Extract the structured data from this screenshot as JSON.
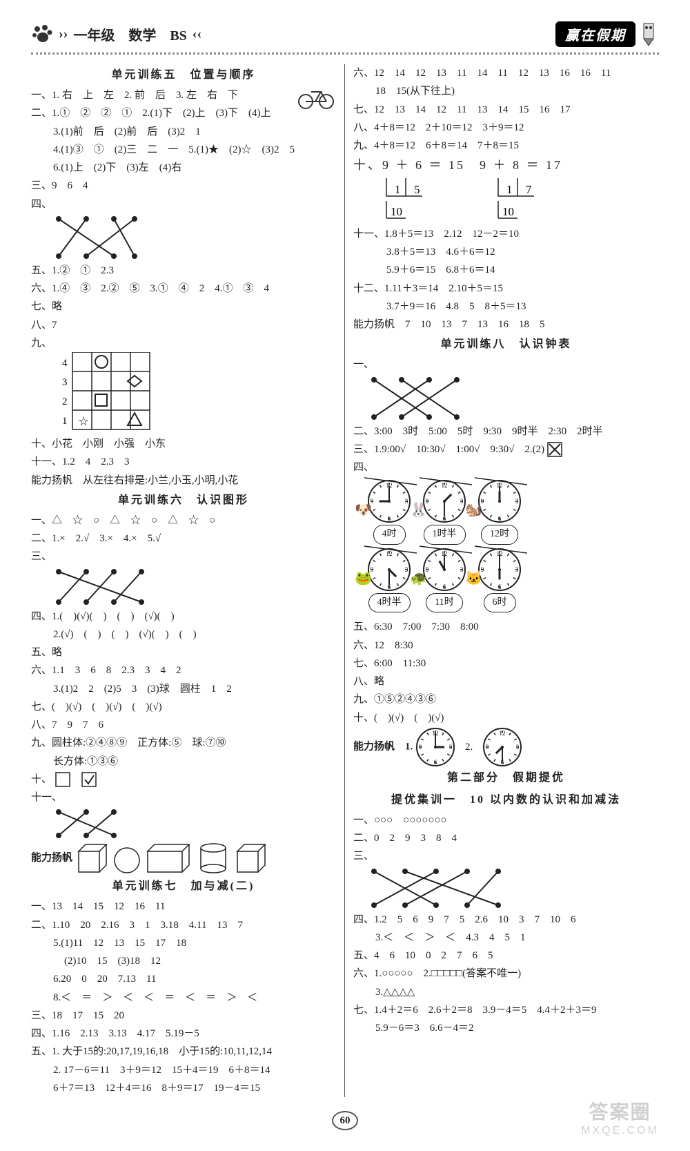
{
  "header": {
    "title_arrows_left": "›› ",
    "title": "一年级　数学　BS",
    "title_arrows_right": " ‹‹",
    "badge": "赢在假期"
  },
  "left": {
    "sec5_title": "单元训练五　位置与顺序",
    "l1": "一、1. 右　上　左　2. 前　后　3. 左　右　下",
    "l2": "二、1.①　②　②　①　2.(1)下　(2)上　(3)下　(4)上",
    "l2b": "3.(1)前　后　(2)前　后　(3)2　1",
    "l2c": "4.(1)③　①　(2)三　二　一　5.(1)★　(2)☆　(3)2　5",
    "l2d": "6.(1)上　(2)下　(3)左　(4)右",
    "l3": "三、9　6　4",
    "l4": "四、",
    "l5": "五、1.②　①　2.3",
    "l6": "六、1.④　③　2.②　⑤　3.①　④　2　4.①　③　4",
    "l7": "七、略",
    "l8": "八、7",
    "l9": "九、",
    "l10": "十、小花　小刚　小强　小东",
    "l11": "十一、1.2　4　2.3　3",
    "l_cap": "能力扬帆　从左往右排是:小兰,小玉,小明,小花",
    "sec6_title": "单元训练六　认识图形",
    "s6_1": "一、△　☆　○　△　☆　○　△　☆　○",
    "s6_2": "二、1.×　2.√　3.×　4.×　5.√",
    "s6_3": "三、",
    "s6_4": "四、1.(　)(√)(　)　(　)　(√)(　)",
    "s6_4b": "2.(√)　(　)　(　)　(√)(　)　(　)",
    "s6_5": "五、略",
    "s6_6": "六、1.1　3　6　8　2.3　3　4　2",
    "s6_6b": "3.(1)2　2　(2)5　3　(3)球　圆柱　1　2",
    "s6_7": "七、(　)(√)　(　)(√)　(　)(√)",
    "s6_8": "八、7　9　7　6",
    "s6_9": "九、圆柱体:②④⑧⑨　正方体:⑤　球:⑦⑩",
    "s6_9b": "长方体:①③⑥",
    "s6_10": "十、",
    "s6_11": "十一、",
    "s6_cap": "能力扬帆",
    "sec7_title": "单元训练七　加与减(二)",
    "s7_1": "一、13　14　15　12　16　11",
    "s7_2": "二、1.10　20　2.16　3　1　3.18　4.11　13　7",
    "s7_5": "5.(1)11　12　13　15　17　18",
    "s7_5b": "(2)10　15　(3)18　12",
    "s7_6": "6.20　0　20　7.13　11",
    "s7_8": "8.＜　＝　＞　＜　＜　＝　＜　＝　＞　＜",
    "s7_3": "三、18　17　15　20",
    "s7_4": "四、1.16　2.13　3.13　4.17　5.19－5",
    "s7_5t": "五、1. 大于15的:20,17,19,16,18　小于15的:10,11,12,14",
    "s7_5t2": "2. 17－6＝11　3＋9＝12　15＋4＝19　6＋8＝14",
    "s7_5t3": "6＋7＝13　12＋4＝16　8＋9＝17　19－4＝15"
  },
  "right": {
    "r6": "六、12　14　12　13　11　14　11　12　13　16　16　11",
    "r6b": "18　15(从下往上)",
    "r7": "七、12　13　14　12　11　13　14　15　16　17",
    "r8": "八、4＋8＝12　2＋10＝12　3＋9＝12",
    "r9": "九、4＋8＝12　6＋8＝14　7＋8＝15",
    "r10": "十、9 ＋ 6 ＝ 15　9 ＋ 8 ＝ 17",
    "r10b1": "1　5",
    "r10b2": "1　7",
    "r10c": "10",
    "r11": "十一、1.8＋5＝13　2.12　12－2＝10",
    "r11b": "3.8＋5＝13　4.6＋6＝12",
    "r11c": "5.9＋6＝15　6.8＋6＝14",
    "r12": "十二、1.11＋3＝14　2.10＋5＝15",
    "r12b": "3.7＋9＝16　4.8　5　8＋5＝13",
    "rcap": "能力扬帆　7　10　13　7　13　16　18　5",
    "sec8_title": "单元训练八　认识钟表",
    "s8_1": "一、",
    "s8_2": "二、3:00　3时　5:00　5时　9:30　9时半　2:30　2时半",
    "s8_3": "三、1.9:00√　10:30√　1:00√　9:30√　2.(2)",
    "s8_4": "四、",
    "clock_labels_row1": [
      "4时",
      "1时半",
      "12时"
    ],
    "clock_labels_row2": [
      "4时半",
      "11时",
      "6时"
    ],
    "s8_5": "五、6:30　7:00　7:30　8:00",
    "s8_6": "六、12　8:30",
    "s8_7": "七、6:00　11:30",
    "s8_8": "八、略",
    "s8_9": "九、①⑤②④③⑥",
    "s8_10": "十、(　)(√)　(　)(√)",
    "s8_cap": "能力扬帆　1.",
    "s8_cap2": "2.",
    "part2_title": "第二部分　假期提优",
    "ty1_title": "提优集训一　10 以内数的认识和加减法",
    "t1": "一、○○○　○○○○○○○",
    "t2": "二、0　2　9　3　8　4",
    "t3": "三、",
    "t4": "四、1.2　5　6　9　7　5　2.6　10　3　7　10　6",
    "t4b": "3.＜　＜　＞　＜　4.3　4　5　1",
    "t5": "五、4　6　10　0　2　7　6　5",
    "t6": "六、1.○○○○○　2.□□□□□(答案不唯一)",
    "t6b": "3.△△△△",
    "t7": "七、1.4＋2＝6　2.6＋2＝8　3.9－4＝5　4.4＋2＋3＝9",
    "t7b": "5.9－6＝3　6.6－4＝2"
  },
  "page_number": "60",
  "watermark": {
    "top": "答案圈",
    "bot": "MXQE.COM"
  }
}
